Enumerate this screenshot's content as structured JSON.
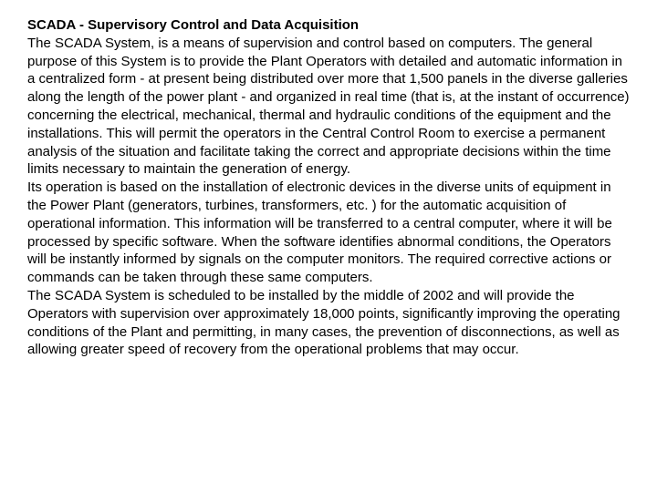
{
  "doc": {
    "title": "SCADA - Supervisory Control and Data Acquisition",
    "para1": "The SCADA System, is a means of supervision and control based on computers. The general purpose of this System is to provide the Plant Operators with detailed and automatic information in a centralized form - at present being distributed over more that 1,500 panels in the diverse galleries along the length of the power plant - and organized in real time (that is, at the instant of occurrence) concerning the electrical, mechanical, thermal and hydraulic conditions of the equipment and the installations. This will permit the operators in the Central Control Room to exercise a permanent analysis of the situation and facilitate taking the correct and appropriate decisions within the time limits necessary to maintain the generation of energy.",
    "para2": "Its operation is based on the installation of electronic devices in the diverse units of equipment in the Power Plant (generators, turbines, transformers, etc. ) for the automatic acquisition of operational information. This information will be transferred to a central computer, where it will be processed by specific software. When the software identifies abnormal conditions, the Operators will be instantly informed by signals on the computer monitors. The required corrective actions or commands can be taken through these same computers.",
    "para3": "The SCADA System is scheduled to be installed by the middle of 2002 and will provide the Operators with supervision over approximately 18,000 points, significantly improving the operating conditions of the Plant and permitting, in many cases, the prevention of disconnections, as well as allowing greater speed of recovery from the operational problems that may occur.",
    "text_color": "#000000",
    "background_color": "#ffffff",
    "font_family": "Arial",
    "font_size_pt": 11,
    "line_height": 1.32
  }
}
